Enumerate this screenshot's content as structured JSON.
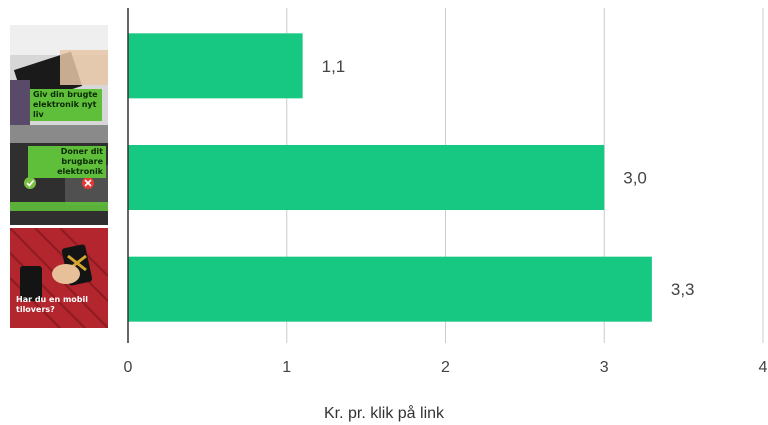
{
  "chart_data": {
    "type": "bar",
    "orientation": "horizontal",
    "categories": [
      "Giv din brugte elektronik nyt liv",
      "Doner dit brugbare elektronik",
      "Har du en mobil tilovers?"
    ],
    "values": [
      1.1,
      3.0,
      3.3
    ],
    "value_labels": [
      "1,1",
      "3,0",
      "3,3"
    ],
    "xlim": [
      0,
      4
    ],
    "xticks": [
      "0",
      "1",
      "2",
      "3",
      "4"
    ],
    "xlabel": "Kr. pr. klik på link",
    "ylabel": "",
    "title": "",
    "grid": "vertical",
    "bar_color": "#17c882"
  },
  "thumbnails": [
    {
      "caption": "Giv din brugte elektronik nyt liv",
      "bg": "#cfcfcf"
    },
    {
      "caption": "Doner dit brugbare elektronik",
      "bg": "#3a3a3a"
    },
    {
      "caption": "Har du en mobil tilovers?",
      "bg": "#b8282f"
    }
  ]
}
